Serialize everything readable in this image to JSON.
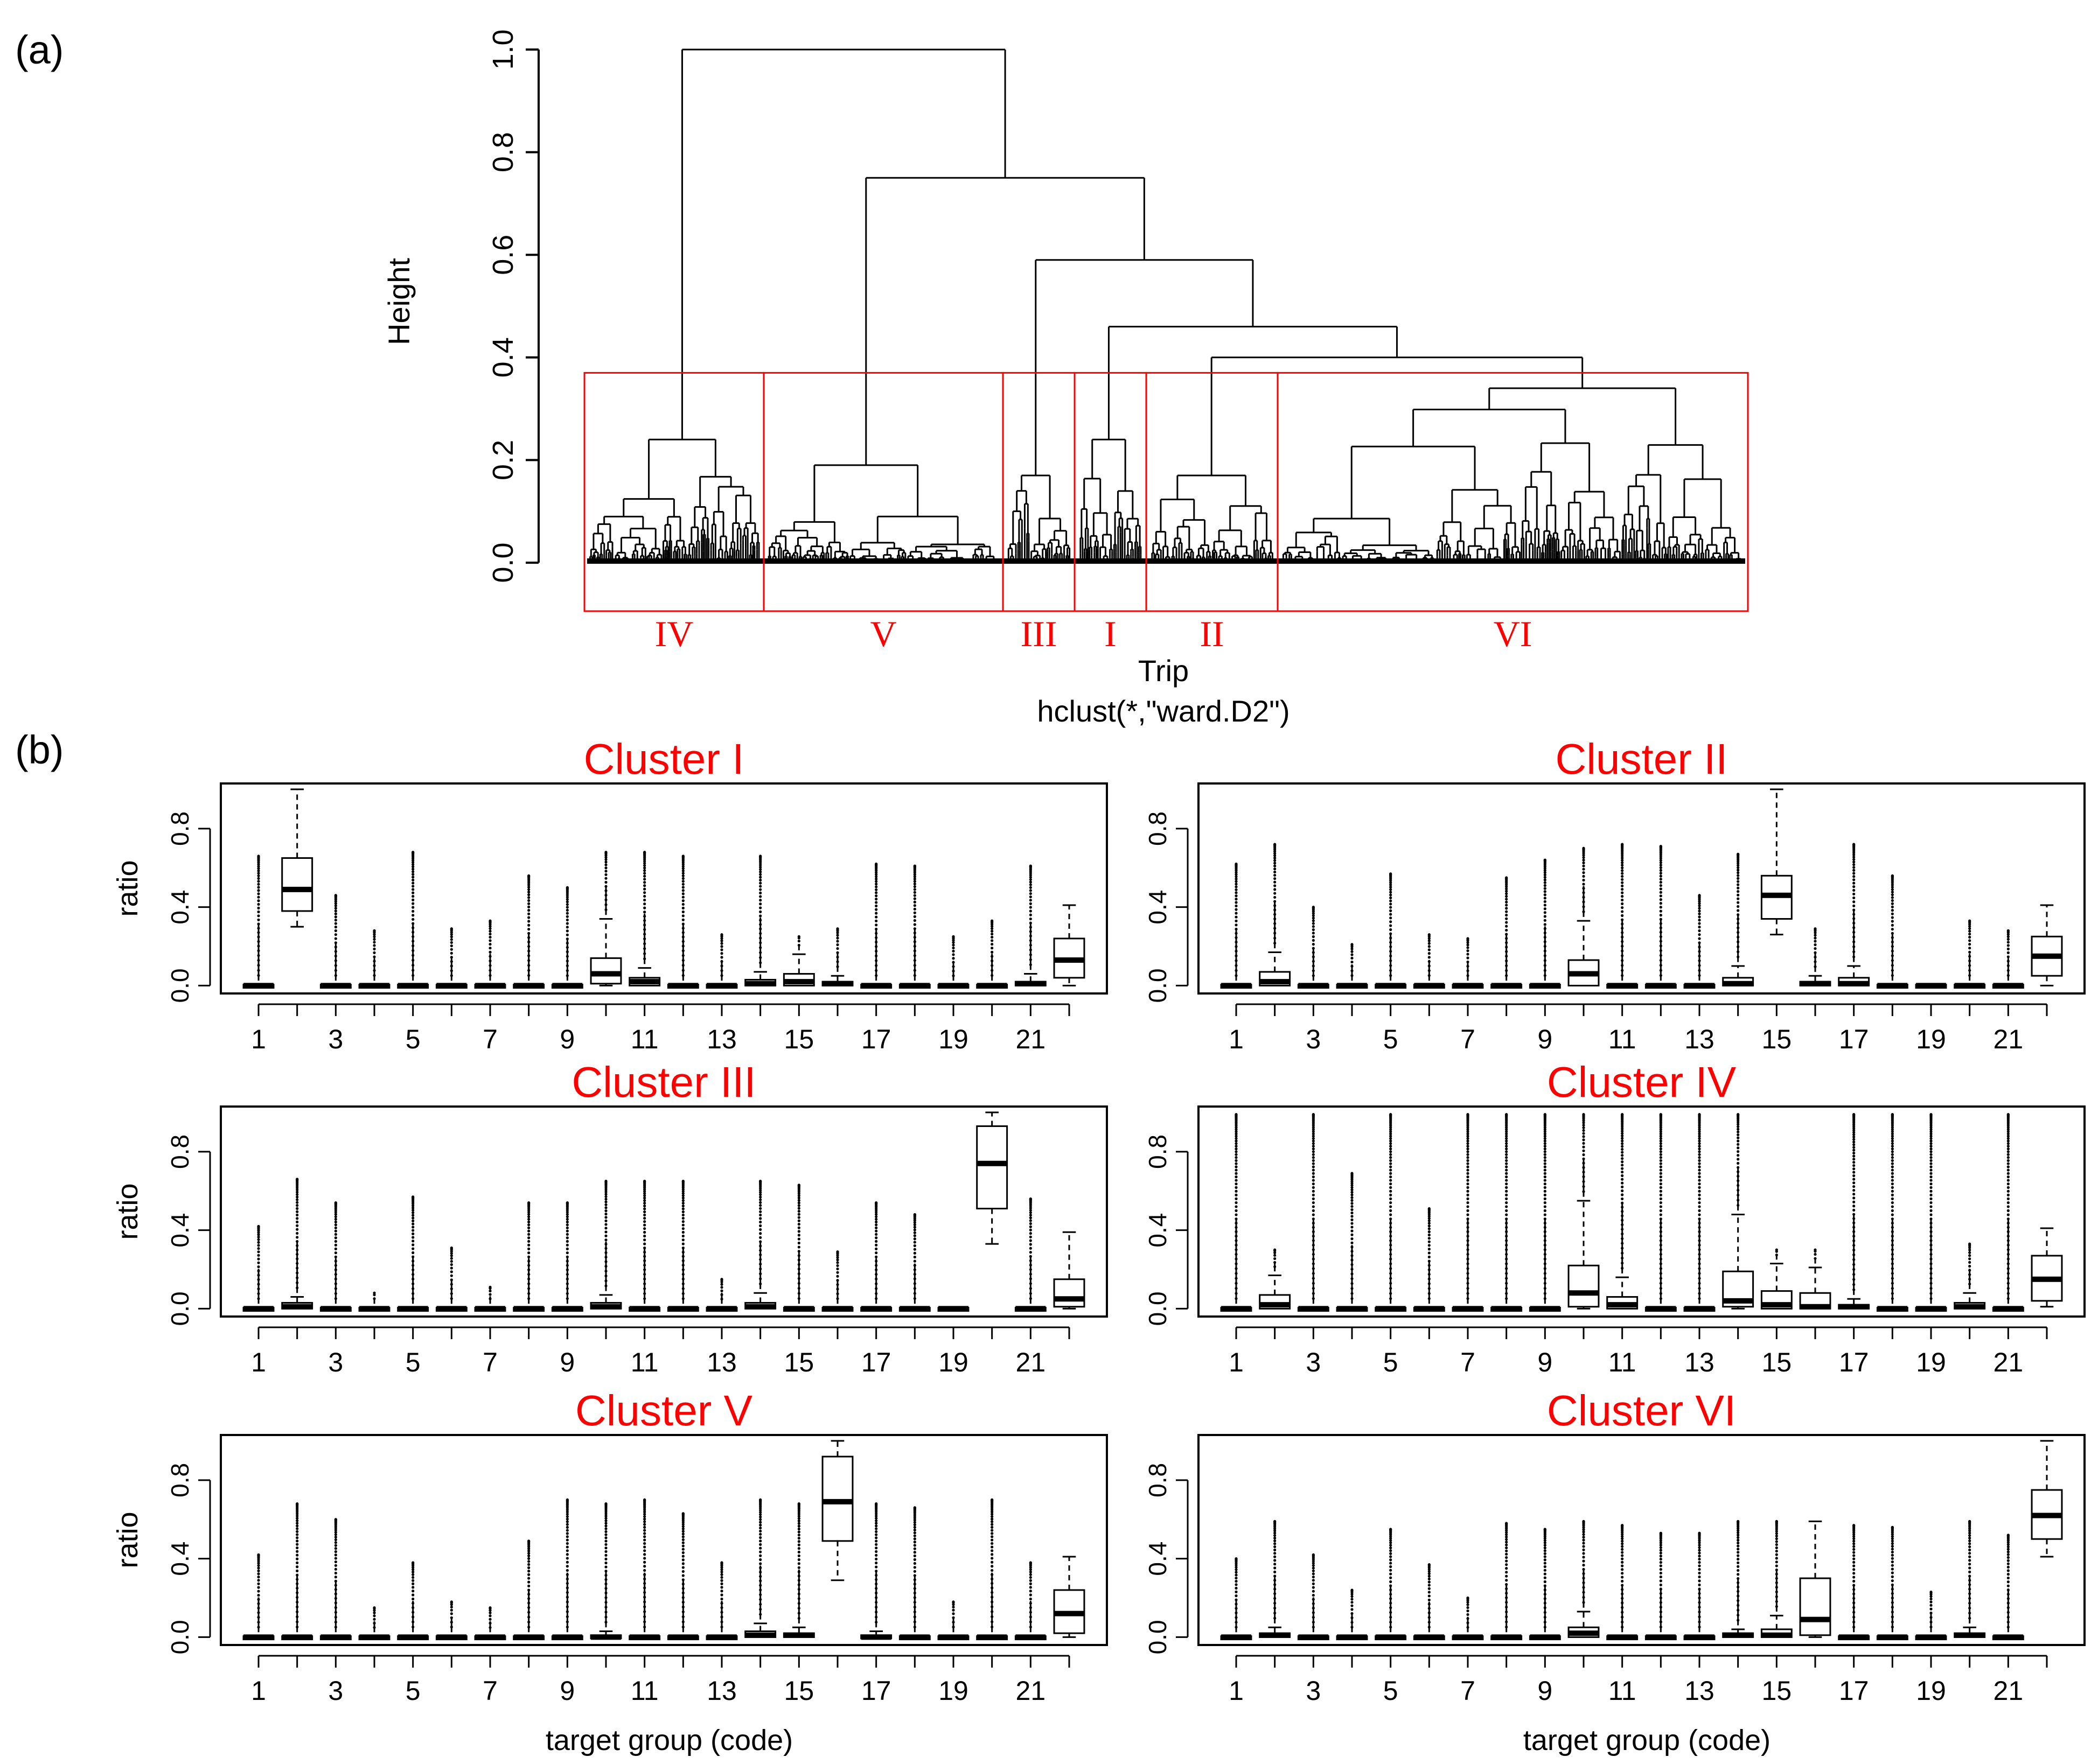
{
  "panel_a": {
    "label": "(a)",
    "chart_data": {
      "type": "dendrogram",
      "ylabel": "Height",
      "xlabel": "Trip",
      "subtitle": "hclust(*,\"ward.D2\")",
      "ylim": [
        0,
        1.0
      ],
      "yticks": [
        "0.0",
        "0.2",
        "0.4",
        "0.6",
        "0.8",
        "1.0"
      ],
      "cut_height": 0.37,
      "clusters": [
        {
          "name": "IV",
          "order": 1
        },
        {
          "name": "V",
          "order": 2
        },
        {
          "name": "III",
          "order": 3
        },
        {
          "name": "I",
          "order": 4
        },
        {
          "name": "II",
          "order": 5
        },
        {
          "name": "VI",
          "order": 6
        }
      ],
      "merge_heights": {
        "root": 1.0,
        "V_rest": 0.75,
        "III_rest": 0.59,
        "I_rest": 0.46,
        "II_VI": 0.4,
        "IV": 0.24,
        "V": 0.19,
        "III": 0.17,
        "I": 0.24,
        "II": 0.17,
        "VI": 0.34
      },
      "highlight_color": "#ff0000"
    }
  },
  "panel_b": {
    "label": "(b)",
    "chart_data": {
      "type": "boxplot",
      "xlabel": "target group (code)",
      "ylabel": "ratio",
      "ylim": [
        0,
        1.0
      ],
      "yticks": [
        "0.0",
        "0.4",
        "0.8"
      ],
      "xticks": [
        "1",
        "3",
        "5",
        "7",
        "9",
        "11",
        "13",
        "15",
        "17",
        "19",
        "21"
      ],
      "categories": [
        "1",
        "2",
        "3",
        "4",
        "5",
        "6",
        "7",
        "8",
        "9",
        "10",
        "11",
        "12",
        "13",
        "14",
        "15",
        "16",
        "17",
        "18",
        "19",
        "20",
        "21",
        "22"
      ],
      "title_color": "#ff0000",
      "panels": [
        {
          "title": "Cluster I",
          "boxes": [
            {
              "code": 2,
              "q1": 0.38,
              "median": 0.49,
              "q3": 0.65,
              "lo": 0.3,
              "hi": 1.0
            },
            {
              "code": 10,
              "q1": 0.01,
              "median": 0.06,
              "q3": 0.14,
              "lo": 0,
              "hi": 0.34
            },
            {
              "code": 11,
              "q1": 0,
              "median": 0.02,
              "q3": 0.04,
              "lo": 0,
              "hi": 0.09
            },
            {
              "code": 14,
              "q1": 0,
              "median": 0.01,
              "q3": 0.03,
              "lo": 0,
              "hi": 0.07
            },
            {
              "code": 15,
              "q1": 0,
              "median": 0.02,
              "q3": 0.06,
              "lo": 0,
              "hi": 0.16
            },
            {
              "code": 16,
              "q1": 0,
              "median": 0.01,
              "q3": 0.02,
              "lo": 0,
              "hi": 0.05
            },
            {
              "code": 21,
              "q1": 0,
              "median": 0.01,
              "q3": 0.02,
              "lo": 0,
              "hi": 0.06
            },
            {
              "code": 22,
              "q1": 0.04,
              "median": 0.13,
              "q3": 0.24,
              "lo": 0,
              "hi": 0.41
            }
          ]
        },
        {
          "title": "Cluster II",
          "boxes": [
            {
              "code": 2,
              "q1": 0,
              "median": 0.02,
              "q3": 0.07,
              "lo": 0,
              "hi": 0.17
            },
            {
              "code": 10,
              "q1": 0,
              "median": 0.06,
              "q3": 0.13,
              "lo": 0,
              "hi": 0.33
            },
            {
              "code": 14,
              "q1": 0,
              "median": 0.01,
              "q3": 0.04,
              "lo": 0,
              "hi": 0.1
            },
            {
              "code": 15,
              "q1": 0.34,
              "median": 0.46,
              "q3": 0.56,
              "lo": 0.26,
              "hi": 1.0
            },
            {
              "code": 16,
              "q1": 0,
              "median": 0.01,
              "q3": 0.02,
              "lo": 0,
              "hi": 0.05
            },
            {
              "code": 17,
              "q1": 0,
              "median": 0.01,
              "q3": 0.04,
              "lo": 0,
              "hi": 0.1
            },
            {
              "code": 22,
              "q1": 0.05,
              "median": 0.15,
              "q3": 0.25,
              "lo": 0,
              "hi": 0.41
            }
          ]
        },
        {
          "title": "Cluster III",
          "boxes": [
            {
              "code": 2,
              "q1": 0,
              "median": 0.01,
              "q3": 0.03,
              "lo": 0,
              "hi": 0.06
            },
            {
              "code": 10,
              "q1": 0,
              "median": 0.01,
              "q3": 0.03,
              "lo": 0,
              "hi": 0.07
            },
            {
              "code": 14,
              "q1": 0,
              "median": 0.01,
              "q3": 0.03,
              "lo": 0,
              "hi": 0.08
            },
            {
              "code": 20,
              "q1": 0.51,
              "median": 0.74,
              "q3": 0.93,
              "lo": 0.33,
              "hi": 1.0
            },
            {
              "code": 22,
              "q1": 0.01,
              "median": 0.05,
              "q3": 0.15,
              "lo": 0,
              "hi": 0.39
            }
          ]
        },
        {
          "title": "Cluster IV",
          "boxes": [
            {
              "code": 2,
              "q1": 0,
              "median": 0.02,
              "q3": 0.07,
              "lo": 0,
              "hi": 0.17
            },
            {
              "code": 10,
              "q1": 0.01,
              "median": 0.08,
              "q3": 0.22,
              "lo": 0,
              "hi": 0.55
            },
            {
              "code": 11,
              "q1": 0,
              "median": 0.02,
              "q3": 0.06,
              "lo": 0,
              "hi": 0.16
            },
            {
              "code": 14,
              "q1": 0.01,
              "median": 0.04,
              "q3": 0.19,
              "lo": 0,
              "hi": 0.48
            },
            {
              "code": 15,
              "q1": 0,
              "median": 0.02,
              "q3": 0.09,
              "lo": 0,
              "hi": 0.23
            },
            {
              "code": 16,
              "q1": 0,
              "median": 0.01,
              "q3": 0.08,
              "lo": 0,
              "hi": 0.21
            },
            {
              "code": 17,
              "q1": 0,
              "median": 0.01,
              "q3": 0.02,
              "lo": 0,
              "hi": 0.05
            },
            {
              "code": 20,
              "q1": 0,
              "median": 0.01,
              "q3": 0.03,
              "lo": 0,
              "hi": 0.08
            },
            {
              "code": 22,
              "q1": 0.04,
              "median": 0.15,
              "q3": 0.27,
              "lo": 0.01,
              "hi": 0.41
            }
          ]
        },
        {
          "title": "Cluster  V",
          "boxes": [
            {
              "code": 10,
              "q1": 0,
              "median": 0,
              "q3": 0.01,
              "lo": 0,
              "hi": 0.03
            },
            {
              "code": 14,
              "q1": 0,
              "median": 0.01,
              "q3": 0.03,
              "lo": 0,
              "hi": 0.07
            },
            {
              "code": 15,
              "q1": 0,
              "median": 0.01,
              "q3": 0.02,
              "lo": 0,
              "hi": 0.05
            },
            {
              "code": 16,
              "q1": 0.49,
              "median": 0.69,
              "q3": 0.92,
              "lo": 0.29,
              "hi": 1.0
            },
            {
              "code": 17,
              "q1": 0,
              "median": 0,
              "q3": 0.01,
              "lo": 0,
              "hi": 0.03
            },
            {
              "code": 22,
              "q1": 0.02,
              "median": 0.12,
              "q3": 0.24,
              "lo": 0,
              "hi": 0.41
            }
          ]
        },
        {
          "title": "Cluster VI",
          "boxes": [
            {
              "code": 2,
              "q1": 0,
              "median": 0.01,
              "q3": 0.02,
              "lo": 0,
              "hi": 0.05
            },
            {
              "code": 10,
              "q1": 0,
              "median": 0.02,
              "q3": 0.05,
              "lo": 0,
              "hi": 0.13
            },
            {
              "code": 14,
              "q1": 0,
              "median": 0.01,
              "q3": 0.02,
              "lo": 0,
              "hi": 0.04
            },
            {
              "code": 15,
              "q1": 0,
              "median": 0.01,
              "q3": 0.04,
              "lo": 0,
              "hi": 0.11
            },
            {
              "code": 16,
              "q1": 0.01,
              "median": 0.09,
              "q3": 0.3,
              "lo": 0,
              "hi": 0.59
            },
            {
              "code": 20,
              "q1": 0,
              "median": 0.01,
              "q3": 0.02,
              "lo": 0,
              "hi": 0.05
            },
            {
              "code": 22,
              "q1": 0.5,
              "median": 0.62,
              "q3": 0.75,
              "lo": 0.41,
              "hi": 1.0
            }
          ]
        }
      ],
      "outlier_max": {
        "Cluster I": [
          0.66,
          0,
          0.46,
          0.28,
          0.68,
          0.29,
          0.33,
          0.56,
          0.5,
          0.68,
          0.68,
          0.66,
          0.26,
          0.66,
          0.25,
          0.29,
          0.62,
          0.61,
          0.25,
          0.33,
          0.61,
          0
        ],
        "Cluster II": [
          0.62,
          0.72,
          0.4,
          0.21,
          0.57,
          0.26,
          0.24,
          0.55,
          0.64,
          0.7,
          0.72,
          0.71,
          0.46,
          0.67,
          0,
          0.29,
          0.72,
          0.56,
          0.02,
          0.33,
          0.28,
          0
        ],
        "Cluster III": [
          0.42,
          0.66,
          0.54,
          0.08,
          0.57,
          0.31,
          0.11,
          0.54,
          0.54,
          0.65,
          0.65,
          0.65,
          0.15,
          0.65,
          0.63,
          0.29,
          0.54,
          0.48,
          0.01,
          0,
          0.56,
          0
        ],
        "Cluster IV": [
          0.99,
          0.3,
          0.99,
          0.69,
          0.99,
          0.51,
          0.99,
          0.99,
          0.99,
          0.99,
          0.99,
          0.99,
          0.99,
          0.99,
          0.3,
          0.3,
          0.99,
          0.99,
          0.99,
          0.33,
          0.99,
          0
        ],
        "Cluster  V": [
          0.42,
          0.68,
          0.6,
          0.15,
          0.38,
          0.18,
          0.15,
          0.49,
          0.7,
          0.68,
          0.7,
          0.63,
          0.38,
          0.7,
          0.68,
          0,
          0.68,
          0.66,
          0.18,
          0.7,
          0.38,
          0
        ],
        "Cluster VI": [
          0.4,
          0.59,
          0.42,
          0.24,
          0.55,
          0.37,
          0.2,
          0.58,
          0.55,
          0.59,
          0.57,
          0.53,
          0.53,
          0.59,
          0.59,
          0.59,
          0.57,
          0.56,
          0.23,
          0.59,
          0.52,
          0
        ]
      }
    }
  }
}
